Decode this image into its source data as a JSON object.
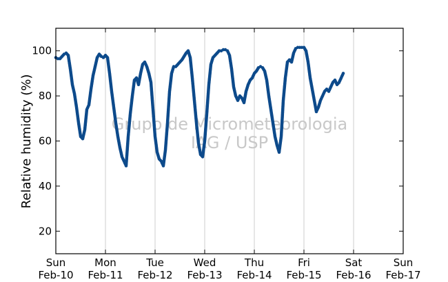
{
  "chart_data": {
    "type": "scatter",
    "title": "",
    "xlabel": "",
    "ylabel": "Relative humidity (%)",
    "ylim": [
      10,
      110
    ],
    "xlim": [
      "2015-02-10T00:00",
      "2015-02-17T00:00"
    ],
    "yticks": [
      20,
      40,
      60,
      80,
      100
    ],
    "xticks": [
      {
        "day": "Sun",
        "date": "Feb-10"
      },
      {
        "day": "Mon",
        "date": "Feb-11"
      },
      {
        "day": "Tue",
        "date": "Feb-12"
      },
      {
        "day": "Wed",
        "date": "Feb-13"
      },
      {
        "day": "Thu",
        "date": "Feb-14"
      },
      {
        "day": "Fri",
        "date": "Feb-15"
      },
      {
        "day": "Sat",
        "date": "Feb-16"
      },
      {
        "day": "Sun",
        "date": "Feb-17"
      }
    ],
    "grid": "vertical-at-day-boundaries",
    "marker_color": "#0d4a8b",
    "watermark": [
      "Grupo de Micrometeorologia",
      "IAG / USP"
    ],
    "series": [
      {
        "name": "",
        "points": [
          [
            "2015-02-10T00:00",
            97
          ],
          [
            "2015-02-10T01:00",
            96.5
          ],
          [
            "2015-02-10T02:00",
            96.5
          ],
          [
            "2015-02-10T03:00",
            97.5
          ],
          [
            "2015-02-10T04:00",
            98.5
          ],
          [
            "2015-02-10T05:00",
            99
          ],
          [
            "2015-02-10T06:00",
            98
          ],
          [
            "2015-02-10T07:00",
            92
          ],
          [
            "2015-02-10T08:00",
            85
          ],
          [
            "2015-02-10T09:00",
            81
          ],
          [
            "2015-02-10T10:00",
            75
          ],
          [
            "2015-02-10T11:00",
            68
          ],
          [
            "2015-02-10T12:00",
            62
          ],
          [
            "2015-02-10T13:00",
            61
          ],
          [
            "2015-02-10T14:00",
            65
          ],
          [
            "2015-02-10T15:00",
            74
          ],
          [
            "2015-02-10T16:00",
            76
          ],
          [
            "2015-02-10T17:00",
            83
          ],
          [
            "2015-02-10T18:00",
            89
          ],
          [
            "2015-02-10T19:00",
            93
          ],
          [
            "2015-02-10T20:00",
            97
          ],
          [
            "2015-02-10T21:00",
            98.5
          ],
          [
            "2015-02-10T22:00",
            97.5
          ],
          [
            "2015-02-10T23:00",
            97
          ],
          [
            "2015-02-11T00:00",
            98
          ],
          [
            "2015-02-11T01:00",
            97
          ],
          [
            "2015-02-11T02:00",
            90
          ],
          [
            "2015-02-11T03:00",
            82
          ],
          [
            "2015-02-11T04:00",
            75
          ],
          [
            "2015-02-11T05:00",
            68
          ],
          [
            "2015-02-11T06:00",
            62
          ],
          [
            "2015-02-11T07:00",
            57
          ],
          [
            "2015-02-11T08:00",
            53
          ],
          [
            "2015-02-11T09:00",
            51
          ],
          [
            "2015-02-11T10:00",
            49
          ],
          [
            "2015-02-11T11:00",
            62
          ],
          [
            "2015-02-11T12:00",
            72
          ],
          [
            "2015-02-11T13:00",
            80
          ],
          [
            "2015-02-11T14:00",
            87
          ],
          [
            "2015-02-11T15:00",
            88
          ],
          [
            "2015-02-11T16:00",
            85
          ],
          [
            "2015-02-11T17:00",
            90
          ],
          [
            "2015-02-11T18:00",
            94
          ],
          [
            "2015-02-11T19:00",
            95
          ],
          [
            "2015-02-11T20:00",
            93
          ],
          [
            "2015-02-11T21:00",
            90
          ],
          [
            "2015-02-11T22:00",
            86
          ],
          [
            "2015-02-11T23:00",
            74
          ],
          [
            "2015-02-12T00:00",
            62
          ],
          [
            "2015-02-12T01:00",
            55
          ],
          [
            "2015-02-12T02:00",
            52
          ],
          [
            "2015-02-12T03:00",
            51
          ],
          [
            "2015-02-12T04:00",
            49
          ],
          [
            "2015-02-12T05:00",
            56
          ],
          [
            "2015-02-12T06:00",
            68
          ],
          [
            "2015-02-12T07:00",
            82
          ],
          [
            "2015-02-12T08:00",
            90
          ],
          [
            "2015-02-12T09:00",
            93
          ],
          [
            "2015-02-12T10:00",
            93
          ],
          [
            "2015-02-12T11:00",
            94
          ],
          [
            "2015-02-12T12:00",
            95
          ],
          [
            "2015-02-12T13:00",
            96
          ],
          [
            "2015-02-12T14:00",
            97.5
          ],
          [
            "2015-02-12T15:00",
            99
          ],
          [
            "2015-02-12T16:00",
            100
          ],
          [
            "2015-02-12T17:00",
            97
          ],
          [
            "2015-02-12T18:00",
            88
          ],
          [
            "2015-02-12T19:00",
            78
          ],
          [
            "2015-02-12T20:00",
            68
          ],
          [
            "2015-02-12T21:00",
            59
          ],
          [
            "2015-02-12T22:00",
            54
          ],
          [
            "2015-02-12T23:00",
            53
          ],
          [
            "2015-02-13T00:00",
            60
          ],
          [
            "2015-02-13T01:00",
            72
          ],
          [
            "2015-02-13T02:00",
            85
          ],
          [
            "2015-02-13T03:00",
            94
          ],
          [
            "2015-02-13T04:00",
            97
          ],
          [
            "2015-02-13T05:00",
            98
          ],
          [
            "2015-02-13T06:00",
            99
          ],
          [
            "2015-02-13T07:00",
            100
          ],
          [
            "2015-02-13T08:00",
            100
          ],
          [
            "2015-02-13T09:00",
            100.5
          ],
          [
            "2015-02-13T10:00",
            100.5
          ],
          [
            "2015-02-13T11:00",
            100
          ],
          [
            "2015-02-13T12:00",
            98
          ],
          [
            "2015-02-13T13:00",
            92
          ],
          [
            "2015-02-13T14:00",
            84
          ],
          [
            "2015-02-13T15:00",
            80
          ],
          [
            "2015-02-13T16:00",
            78
          ],
          [
            "2015-02-13T17:00",
            80
          ],
          [
            "2015-02-13T18:00",
            79
          ],
          [
            "2015-02-13T19:00",
            77
          ],
          [
            "2015-02-13T20:00",
            82
          ],
          [
            "2015-02-13T21:00",
            85
          ],
          [
            "2015-02-13T22:00",
            87
          ],
          [
            "2015-02-13T23:00",
            88
          ],
          [
            "2015-02-14T00:00",
            90
          ],
          [
            "2015-02-14T01:00",
            91
          ],
          [
            "2015-02-14T02:00",
            92.5
          ],
          [
            "2015-02-14T03:00",
            93
          ],
          [
            "2015-02-14T04:00",
            92.5
          ],
          [
            "2015-02-14T05:00",
            91
          ],
          [
            "2015-02-14T06:00",
            87
          ],
          [
            "2015-02-14T07:00",
            80
          ],
          [
            "2015-02-14T08:00",
            74
          ],
          [
            "2015-02-14T09:00",
            68
          ],
          [
            "2015-02-14T10:00",
            62
          ],
          [
            "2015-02-14T11:00",
            58
          ],
          [
            "2015-02-14T12:00",
            55
          ],
          [
            "2015-02-14T13:00",
            62
          ],
          [
            "2015-02-14T14:00",
            78
          ],
          [
            "2015-02-14T15:00",
            88
          ],
          [
            "2015-02-14T16:00",
            95
          ],
          [
            "2015-02-14T17:00",
            96
          ],
          [
            "2015-02-14T18:00",
            95
          ],
          [
            "2015-02-14T19:00",
            99
          ],
          [
            "2015-02-14T20:00",
            101
          ],
          [
            "2015-02-14T21:00",
            101.5
          ],
          [
            "2015-02-14T22:00",
            101.5
          ],
          [
            "2015-02-14T23:00",
            101.5
          ],
          [
            "2015-02-15T00:00",
            101.5
          ],
          [
            "2015-02-15T01:00",
            100
          ],
          [
            "2015-02-15T02:00",
            95
          ],
          [
            "2015-02-15T03:00",
            88
          ],
          [
            "2015-02-15T04:00",
            83
          ],
          [
            "2015-02-15T05:00",
            78
          ],
          [
            "2015-02-15T06:00",
            73
          ],
          [
            "2015-02-15T07:00",
            75
          ],
          [
            "2015-02-15T08:00",
            78
          ],
          [
            "2015-02-15T09:00",
            80
          ],
          [
            "2015-02-15T10:00",
            82
          ],
          [
            "2015-02-15T11:00",
            83
          ],
          [
            "2015-02-15T12:00",
            82
          ],
          [
            "2015-02-15T13:00",
            84
          ],
          [
            "2015-02-15T14:00",
            86
          ],
          [
            "2015-02-15T15:00",
            87
          ],
          [
            "2015-02-15T16:00",
            85
          ],
          [
            "2015-02-15T17:00",
            86
          ],
          [
            "2015-02-15T18:00",
            88
          ],
          [
            "2015-02-15T19:00",
            90
          ]
        ]
      }
    ]
  }
}
